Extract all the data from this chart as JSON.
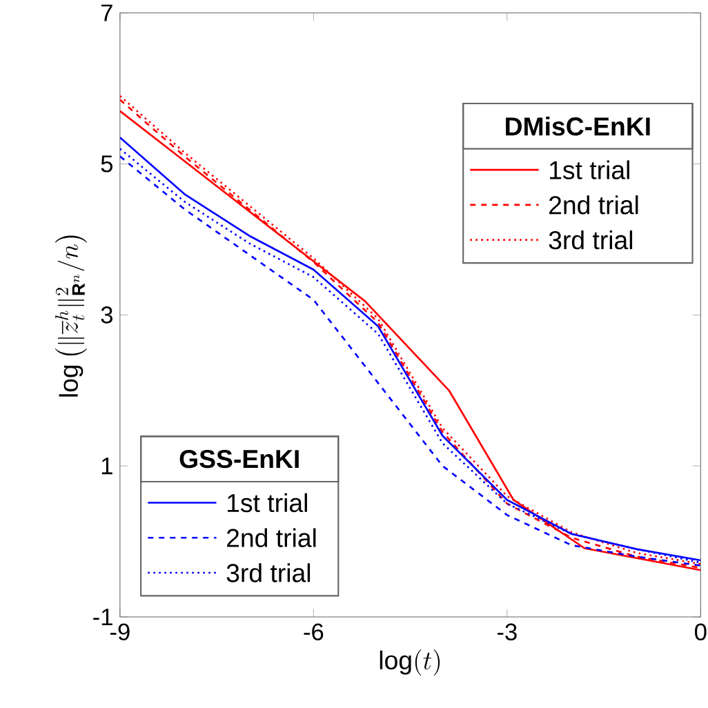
{
  "chart_data": {
    "type": "line",
    "xlabel": "\\log(t)",
    "ylabel": "\\log\\left(\\|\\overline{z}_t^h\\|_{\\mathbf{R}^n}^2/n\\right)",
    "xlim": [
      -9,
      0
    ],
    "ylim": [
      -1,
      7
    ],
    "xticks": [
      -9,
      -6,
      -3,
      0
    ],
    "yticks": [
      -1,
      1,
      3,
      5,
      7
    ],
    "grid": false,
    "legend": [
      "top right",
      "bottom left"
    ],
    "legend_title": [
      "DMisC-EnKI",
      "GSS-EnKI"
    ],
    "series": [
      {
        "name": "1st trial",
        "color": "#ff0000",
        "line_style": "solid",
        "x": [
          -9,
          -5.2,
          -3.9,
          -2.9,
          -1.8,
          0
        ],
        "values": [
          5.7,
          3.18,
          2.0,
          0.55,
          -0.09,
          -0.38
        ]
      },
      {
        "name": "2nd trial",
        "color": "#ff0000",
        "line_style": "dashed",
        "x": [
          -9,
          -8,
          -7,
          -6,
          -5,
          -4,
          -3,
          -2,
          -1,
          0
        ],
        "values": [
          5.85,
          5.1,
          4.4,
          3.7,
          2.9,
          1.45,
          0.5,
          0.05,
          -0.2,
          -0.35
        ]
      },
      {
        "name": "3rd trial",
        "color": "#ff0000",
        "line_style": "dotted",
        "x": [
          -9,
          -8,
          -7,
          -6,
          -5,
          -4,
          -3,
          -2,
          -1,
          0
        ],
        "values": [
          5.9,
          5.15,
          4.45,
          3.75,
          2.95,
          1.5,
          0.6,
          0.12,
          -0.15,
          -0.3
        ]
      },
      {
        "name": "1st trial",
        "color": "#0000ff",
        "line_style": "solid",
        "x": [
          -9,
          -8,
          -7,
          -6,
          -5,
          -4,
          -3,
          -2,
          -1,
          0
        ],
        "values": [
          5.35,
          4.6,
          4.05,
          3.6,
          2.85,
          1.4,
          0.55,
          0.1,
          -0.1,
          -0.25
        ]
      },
      {
        "name": "2nd trial",
        "color": "#0000ff",
        "line_style": "dashed",
        "x": [
          -9,
          -8,
          -7,
          -6,
          -5,
          -4,
          -3,
          -2,
          -1,
          0
        ],
        "values": [
          5.1,
          4.4,
          3.8,
          3.2,
          2.1,
          1.0,
          0.35,
          -0.05,
          -0.2,
          -0.32
        ]
      },
      {
        "name": "3rd trial",
        "color": "#0000ff",
        "line_style": "dotted",
        "x": [
          -9,
          -8,
          -7,
          -6,
          -5,
          -4,
          -3,
          -2,
          -1,
          0
        ],
        "values": [
          5.2,
          4.5,
          3.95,
          3.5,
          2.75,
          1.3,
          0.5,
          0.1,
          -0.1,
          -0.28
        ]
      }
    ]
  }
}
